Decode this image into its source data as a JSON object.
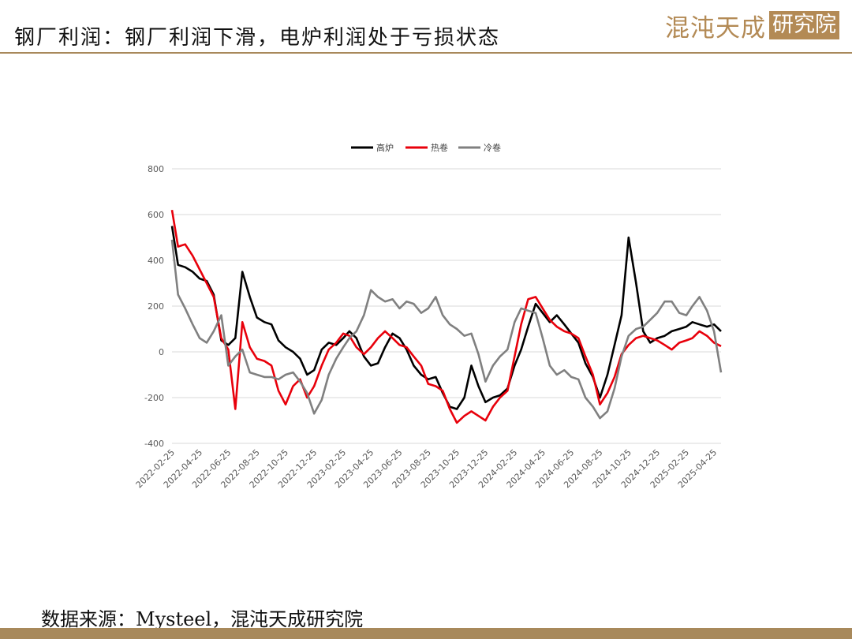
{
  "header": {
    "title": "钢厂利润：钢厂利润下滑，电炉利润处于亏损状态",
    "logo_main": "混沌天成",
    "logo_box": "研究院"
  },
  "footer": {
    "source": "数据来源：Mysteel，混沌天成研究院"
  },
  "colors": {
    "accent": "#a8895b",
    "blast": "#000000",
    "hot": "#e8000b",
    "cold": "#808080"
  },
  "chart_data": {
    "type": "line",
    "title": "",
    "xlabel": "",
    "ylabel": "",
    "ylim": [
      -400,
      800
    ],
    "yticks": [
      -400,
      -200,
      0,
      200,
      400,
      600,
      800
    ],
    "grid": "horizontal",
    "legend_position": "top-center",
    "x_tick_labels": [
      "2022-02-25",
      "2022-04-25",
      "2022-06-25",
      "2022-08-25",
      "2022-10-25",
      "2022-12-25",
      "2023-02-25",
      "2023-04-25",
      "2023-06-25",
      "2023-08-25",
      "2023-10-25",
      "2023-12-25",
      "2024-02-25",
      "2024-04-25",
      "2024-06-25",
      "2024-08-25",
      "2024-10-25",
      "2024-12-25",
      "2025-02-25",
      "2025-04-25"
    ],
    "x": [
      "2022-02-25",
      "2022-03-10",
      "2022-03-25",
      "2022-04-10",
      "2022-04-25",
      "2022-05-10",
      "2022-05-25",
      "2022-06-10",
      "2022-06-25",
      "2022-07-10",
      "2022-07-25",
      "2022-08-10",
      "2022-08-25",
      "2022-09-10",
      "2022-09-25",
      "2022-10-10",
      "2022-10-25",
      "2022-11-10",
      "2022-11-25",
      "2022-12-10",
      "2022-12-25",
      "2023-01-10",
      "2023-01-25",
      "2023-02-10",
      "2023-02-25",
      "2023-03-10",
      "2023-03-25",
      "2023-04-10",
      "2023-04-25",
      "2023-05-10",
      "2023-05-25",
      "2023-06-10",
      "2023-06-25",
      "2023-07-10",
      "2023-07-25",
      "2023-08-10",
      "2023-08-25",
      "2023-09-10",
      "2023-09-25",
      "2023-10-10",
      "2023-10-25",
      "2023-11-10",
      "2023-11-25",
      "2023-12-10",
      "2023-12-25",
      "2024-01-10",
      "2024-01-25",
      "2024-02-10",
      "2024-02-25",
      "2024-03-10",
      "2024-03-25",
      "2024-04-10",
      "2024-04-25",
      "2024-05-10",
      "2024-05-25",
      "2024-06-10",
      "2024-06-25",
      "2024-07-10",
      "2024-07-25",
      "2024-08-10",
      "2024-08-25",
      "2024-09-10",
      "2024-09-25",
      "2024-10-10",
      "2024-10-25",
      "2024-11-10",
      "2024-11-25",
      "2024-12-10",
      "2024-12-25",
      "2025-01-10",
      "2025-01-25",
      "2025-02-10",
      "2025-02-25",
      "2025-03-10",
      "2025-03-25",
      "2025-04-10",
      "2025-04-25",
      "2025-05-10"
    ],
    "series": [
      {
        "name": "高炉",
        "color": "#000000",
        "values": [
          550,
          380,
          370,
          350,
          320,
          310,
          250,
          50,
          30,
          60,
          350,
          240,
          150,
          130,
          120,
          50,
          20,
          0,
          -30,
          -100,
          -80,
          10,
          40,
          30,
          60,
          90,
          60,
          -20,
          -60,
          -50,
          20,
          80,
          60,
          10,
          -60,
          -100,
          -120,
          -110,
          -180,
          -240,
          -250,
          -200,
          -60,
          -150,
          -220,
          -200,
          -190,
          -160,
          -60,
          10,
          110,
          210,
          170,
          130,
          160,
          120,
          80,
          40,
          -50,
          -110,
          -200,
          -100,
          30,
          160,
          500,
          300,
          90,
          40,
          60,
          70,
          90,
          100,
          110,
          130,
          120,
          110,
          120,
          90
        ]
      },
      {
        "name": "热卷",
        "color": "#e8000b",
        "values": [
          620,
          460,
          470,
          420,
          360,
          300,
          240,
          60,
          10,
          -250,
          130,
          20,
          -30,
          -40,
          -60,
          -170,
          -230,
          -150,
          -120,
          -200,
          -150,
          -60,
          10,
          40,
          80,
          70,
          20,
          -10,
          20,
          60,
          90,
          60,
          30,
          20,
          -20,
          -60,
          -140,
          -150,
          -170,
          -250,
          -310,
          -280,
          -260,
          -280,
          -300,
          -240,
          -200,
          -170,
          -20,
          120,
          230,
          240,
          190,
          140,
          110,
          90,
          80,
          60,
          -20,
          -100,
          -230,
          -180,
          -110,
          -10,
          30,
          60,
          70,
          60,
          50,
          30,
          10,
          40,
          50,
          60,
          90,
          70,
          40,
          25
        ]
      },
      {
        "name": "冷卷",
        "color": "#808080",
        "values": [
          490,
          250,
          190,
          120,
          60,
          40,
          90,
          160,
          -60,
          -20,
          10,
          -90,
          -100,
          -110,
          -110,
          -120,
          -100,
          -90,
          -130,
          -180,
          -270,
          -210,
          -100,
          -30,
          20,
          60,
          90,
          160,
          270,
          240,
          220,
          230,
          190,
          220,
          210,
          170,
          190,
          240,
          160,
          120,
          100,
          70,
          80,
          -10,
          -130,
          -60,
          -20,
          10,
          130,
          190,
          180,
          170,
          60,
          -60,
          -100,
          -80,
          -110,
          -120,
          -200,
          -240,
          -290,
          -260,
          -160,
          -20,
          70,
          100,
          110,
          140,
          170,
          220,
          220,
          170,
          160,
          200,
          240,
          180,
          90,
          -90
        ]
      }
    ]
  },
  "legend": [
    "高炉",
    "热卷",
    "冷卷"
  ]
}
